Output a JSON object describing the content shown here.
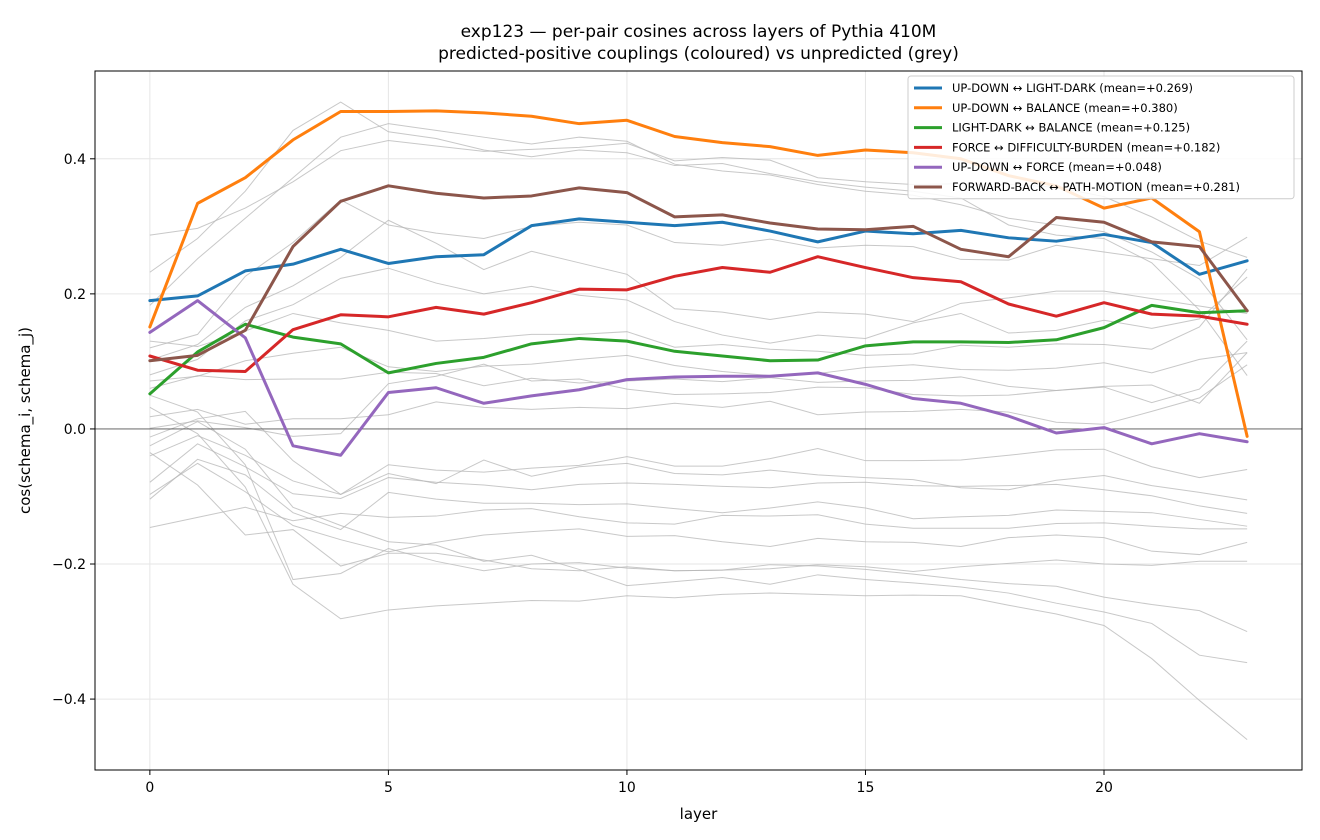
{
  "chart_data": {
    "type": "line",
    "title": "exp123 — per-pair cosines across layers of Pythia 410M",
    "subtitle": "predicted-positive couplings (coloured) vs unpredicted (grey)",
    "xlabel": "layer",
    "ylabel": "cos(schema_i, schema_j)",
    "xlim": [
      -1.15,
      24.15
    ],
    "ylim": [
      -0.505,
      0.53
    ],
    "xticks": [
      0,
      5,
      10,
      15,
      20
    ],
    "yticks": [
      -0.4,
      -0.2,
      0.0,
      0.2,
      0.4
    ],
    "ytick_labels": [
      "−0.4",
      "−0.2",
      "0.0",
      "0.2",
      "0.4"
    ],
    "grid": true,
    "zero_line": true,
    "legend_position": "top-right",
    "x": [
      0,
      1,
      2,
      3,
      4,
      5,
      6,
      7,
      8,
      9,
      10,
      11,
      12,
      13,
      14,
      15,
      16,
      17,
      18,
      19,
      20,
      21,
      22,
      23
    ],
    "series": [
      {
        "name": "UP-DOWN ↔ LIGHT-DARK  (mean=+0.269)",
        "color": "#1f77b4",
        "values": [
          0.19,
          0.197,
          0.234,
          0.244,
          0.266,
          0.245,
          0.255,
          0.258,
          0.301,
          0.311,
          0.306,
          0.301,
          0.306,
          0.293,
          0.277,
          0.293,
          0.289,
          0.294,
          0.283,
          0.278,
          0.288,
          0.276,
          0.229,
          0.249
        ]
      },
      {
        "name": "UP-DOWN ↔ BALANCE  (mean=+0.380)",
        "color": "#ff7f0e",
        "values": [
          0.151,
          0.334,
          0.372,
          0.428,
          0.47,
          0.47,
          0.471,
          0.468,
          0.463,
          0.452,
          0.457,
          0.433,
          0.424,
          0.418,
          0.405,
          0.413,
          0.409,
          0.4,
          0.375,
          0.36,
          0.327,
          0.342,
          0.292,
          -0.011
        ]
      },
      {
        "name": "LIGHT-DARK ↔ BALANCE  (mean=+0.125)",
        "color": "#2ca02c",
        "values": [
          0.052,
          0.114,
          0.155,
          0.136,
          0.126,
          0.083,
          0.097,
          0.106,
          0.126,
          0.134,
          0.13,
          0.115,
          0.108,
          0.101,
          0.102,
          0.123,
          0.129,
          0.129,
          0.128,
          0.132,
          0.15,
          0.183,
          0.172,
          0.175
        ]
      },
      {
        "name": "FORCE ↔ DIFFICULTY-BURDEN  (mean=+0.182)",
        "color": "#d62728",
        "values": [
          0.108,
          0.087,
          0.085,
          0.147,
          0.169,
          0.166,
          0.18,
          0.17,
          0.187,
          0.207,
          0.206,
          0.226,
          0.239,
          0.232,
          0.255,
          0.239,
          0.224,
          0.218,
          0.185,
          0.167,
          0.187,
          0.17,
          0.167,
          0.155
        ]
      },
      {
        "name": "UP-DOWN ↔ FORCE  (mean=+0.048)",
        "color": "#9467bd",
        "values": [
          0.143,
          0.19,
          0.135,
          -0.025,
          -0.039,
          0.054,
          0.061,
          0.038,
          0.049,
          0.058,
          0.073,
          0.077,
          0.078,
          0.078,
          0.083,
          0.066,
          0.045,
          0.038,
          0.019,
          -0.006,
          0.002,
          -0.022,
          -0.007,
          -0.019
        ]
      },
      {
        "name": "FORWARD-BACK ↔ PATH-MOTION  (mean=+0.281)",
        "color": "#8c564b",
        "values": [
          0.101,
          0.109,
          0.146,
          0.27,
          0.337,
          0.36,
          0.349,
          0.342,
          0.345,
          0.357,
          0.35,
          0.314,
          0.317,
          0.305,
          0.296,
          0.295,
          0.3,
          0.266,
          0.255,
          0.313,
          0.306,
          0.277,
          0.27,
          0.175
        ]
      }
    ],
    "grey_series": [
      [
        0.287,
        0.297,
        0.327,
        0.366,
        0.412,
        0.427,
        0.419,
        0.411,
        0.414,
        0.417,
        0.423,
        0.397,
        0.402,
        0.398,
        0.372,
        0.366,
        0.362,
        0.363,
        0.362,
        0.358,
        0.344,
        0.314,
        0.278,
        0.254
      ],
      [
        0.232,
        0.282,
        0.352,
        0.442,
        0.484,
        0.44,
        0.43,
        0.413,
        0.403,
        0.413,
        0.409,
        0.39,
        0.393,
        0.378,
        0.366,
        0.358,
        0.352,
        0.342,
        0.302,
        0.287,
        0.282,
        0.246,
        0.176,
        0.079
      ],
      [
        0.183,
        0.252,
        0.312,
        0.372,
        0.432,
        0.452,
        0.442,
        0.432,
        0.422,
        0.432,
        0.426,
        0.392,
        0.382,
        0.376,
        0.362,
        0.352,
        0.346,
        0.332,
        0.312,
        0.302,
        0.292,
        0.262,
        0.222,
        0.132
      ],
      [
        0.12,
        0.14,
        0.226,
        0.276,
        0.339,
        0.302,
        0.29,
        0.282,
        0.3,
        0.306,
        0.302,
        0.276,
        0.272,
        0.281,
        0.268,
        0.272,
        0.27,
        0.251,
        0.25,
        0.272,
        0.262,
        0.252,
        0.242,
        0.284
      ],
      [
        0.102,
        0.125,
        0.18,
        0.212,
        0.254,
        0.309,
        0.275,
        0.236,
        0.263,
        0.246,
        0.229,
        0.178,
        0.173,
        0.162,
        0.173,
        0.17,
        0.159,
        0.186,
        0.194,
        0.204,
        0.204,
        0.193,
        0.182,
        0.171
      ],
      [
        0.08,
        0.103,
        0.16,
        0.184,
        0.223,
        0.238,
        0.216,
        0.2,
        0.211,
        0.198,
        0.191,
        0.159,
        0.139,
        0.127,
        0.139,
        0.134,
        0.157,
        0.171,
        0.142,
        0.146,
        0.161,
        0.149,
        0.163,
        0.225
      ],
      [
        0.13,
        0.122,
        0.145,
        0.171,
        0.157,
        0.146,
        0.13,
        0.134,
        0.14,
        0.14,
        0.144,
        0.121,
        0.125,
        0.118,
        0.115,
        0.109,
        0.111,
        0.124,
        0.121,
        0.126,
        0.125,
        0.118,
        0.151,
        0.237
      ],
      [
        0.071,
        0.078,
        0.101,
        0.112,
        0.121,
        0.092,
        0.085,
        0.093,
        0.096,
        0.103,
        0.109,
        0.094,
        0.085,
        0.079,
        0.082,
        0.091,
        0.095,
        0.088,
        0.087,
        0.09,
        0.098,
        0.083,
        0.103,
        0.113
      ],
      [
        0.06,
        0.079,
        0.073,
        0.074,
        0.074,
        0.084,
        0.082,
        0.064,
        0.075,
        0.068,
        0.071,
        0.074,
        0.07,
        0.076,
        0.069,
        0.071,
        0.072,
        0.077,
        0.063,
        0.057,
        0.063,
        0.065,
        0.038,
        0.113
      ],
      [
        0.018,
        0.029,
        0.007,
        0.015,
        0.015,
        0.021,
        0.04,
        0.032,
        0.029,
        0.032,
        0.03,
        0.038,
        0.032,
        0.041,
        0.021,
        0.025,
        0.026,
        0.029,
        0.025,
        0.01,
        0.007,
        0.026,
        0.046,
        0.095
      ],
      [
        0.001,
        0.012,
        0.002,
        -0.011,
        -0.007,
        0.067,
        0.078,
        0.096,
        0.071,
        0.074,
        0.059,
        0.051,
        0.052,
        0.054,
        0.062,
        0.061,
        0.051,
        0.049,
        0.05,
        0.057,
        0.062,
        0.039,
        0.059,
        0.13
      ],
      [
        -0.012,
        0.015,
        0.026,
        -0.047,
        -0.097,
        -0.053,
        -0.061,
        -0.064,
        -0.058,
        -0.054,
        -0.041,
        -0.055,
        -0.055,
        -0.044,
        -0.029,
        -0.047,
        -0.047,
        -0.046,
        -0.039,
        -0.031,
        -0.03,
        -0.056,
        -0.072,
        -0.06
      ],
      [
        -0.04,
        -0.01,
        -0.039,
        -0.077,
        -0.097,
        -0.066,
        -0.081,
        -0.046,
        -0.07,
        -0.056,
        -0.051,
        -0.066,
        -0.068,
        -0.061,
        -0.068,
        -0.072,
        -0.075,
        -0.087,
        -0.09,
        -0.076,
        -0.069,
        -0.084,
        -0.094,
        -0.105
      ],
      [
        -0.079,
        -0.022,
        -0.056,
        -0.096,
        -0.103,
        -0.072,
        -0.079,
        -0.083,
        -0.09,
        -0.082,
        -0.08,
        -0.082,
        -0.085,
        -0.087,
        -0.08,
        -0.079,
        -0.084,
        -0.085,
        -0.084,
        -0.082,
        -0.09,
        -0.099,
        -0.114,
        -0.125
      ],
      [
        -0.104,
        -0.045,
        -0.068,
        -0.124,
        -0.149,
        -0.094,
        -0.104,
        -0.11,
        -0.11,
        -0.112,
        -0.111,
        -0.118,
        -0.124,
        -0.117,
        -0.108,
        -0.117,
        -0.133,
        -0.13,
        -0.128,
        -0.12,
        -0.122,
        -0.124,
        -0.134,
        -0.144
      ],
      [
        -0.146,
        -0.131,
        -0.116,
        -0.136,
        -0.125,
        -0.131,
        -0.129,
        -0.12,
        -0.118,
        -0.13,
        -0.139,
        -0.141,
        -0.128,
        -0.129,
        -0.127,
        -0.141,
        -0.147,
        -0.147,
        -0.147,
        -0.14,
        -0.139,
        -0.144,
        -0.148,
        -0.148
      ],
      [
        -0.097,
        -0.051,
        -0.093,
        -0.143,
        -0.164,
        -0.182,
        -0.168,
        -0.157,
        -0.152,
        -0.148,
        -0.159,
        -0.158,
        -0.167,
        -0.174,
        -0.162,
        -0.167,
        -0.168,
        -0.174,
        -0.161,
        -0.157,
        -0.161,
        -0.181,
        -0.186,
        -0.168
      ],
      [
        -0.035,
        -0.083,
        -0.157,
        -0.149,
        -0.203,
        -0.184,
        -0.184,
        -0.194,
        -0.207,
        -0.21,
        -0.204,
        -0.21,
        -0.209,
        -0.207,
        -0.201,
        -0.204,
        -0.211,
        -0.204,
        -0.199,
        -0.194,
        -0.2,
        -0.202,
        -0.196,
        -0.196
      ],
      [
        0.05,
        0.025,
        -0.053,
        -0.223,
        -0.214,
        -0.177,
        -0.196,
        -0.21,
        -0.2,
        -0.198,
        -0.206,
        -0.21,
        -0.209,
        -0.201,
        -0.203,
        -0.208,
        -0.215,
        -0.223,
        -0.229,
        -0.233,
        -0.249,
        -0.26,
        -0.269,
        -0.3
      ],
      [
        0.032,
        -0.007,
        -0.086,
        -0.23,
        -0.281,
        -0.268,
        -0.262,
        -0.258,
        -0.254,
        -0.255,
        -0.247,
        -0.25,
        -0.245,
        -0.243,
        -0.245,
        -0.247,
        -0.246,
        -0.247,
        -0.261,
        -0.274,
        -0.291,
        -0.34,
        -0.402,
        -0.46
      ],
      [
        -0.025,
        0.011,
        -0.03,
        -0.116,
        -0.143,
        -0.167,
        -0.172,
        -0.196,
        -0.187,
        -0.208,
        -0.232,
        -0.226,
        -0.22,
        -0.23,
        -0.216,
        -0.223,
        -0.228,
        -0.234,
        -0.243,
        -0.258,
        -0.271,
        -0.288,
        -0.335,
        -0.346
      ]
    ]
  }
}
